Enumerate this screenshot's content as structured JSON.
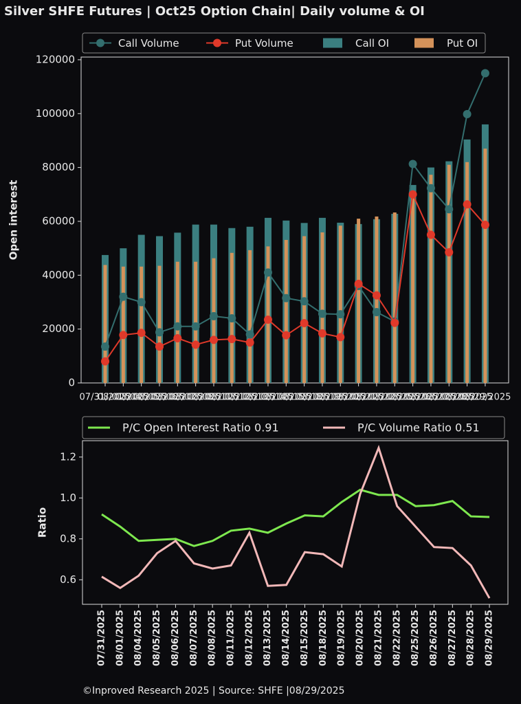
{
  "title": "Silver SHFE Futures | Oct25 Option Chain| Daily volume & OI",
  "footer": "©Inproved Research 2025 | Source: SHFE |08/29/2025",
  "chart_data": [
    {
      "type": "bar",
      "ylabel": "Open interest",
      "categories": [
        "07/31/2025",
        "08/01/2025",
        "08/04/2025",
        "08/05/2025",
        "08/06/2025",
        "08/07/2025",
        "08/08/2025",
        "08/11/2025",
        "08/12/2025",
        "08/13/2025",
        "08/14/2025",
        "08/15/2025",
        "08/18/2025",
        "08/19/2025",
        "08/20/2025",
        "08/21/2025",
        "08/22/2025",
        "08/25/2025",
        "08/26/2025",
        "08/27/2025",
        "08/28/2025",
        "08/29/2025"
      ],
      "ylim": [
        0,
        121000
      ],
      "yticks": [
        0,
        20000,
        40000,
        60000,
        80000,
        100000,
        120000
      ],
      "series": [
        {
          "name": "Call Volume",
          "type": "line",
          "color": "#336e6e",
          "values": [
            13500,
            32000,
            30000,
            18800,
            21000,
            21000,
            24800,
            24000,
            18000,
            41000,
            31500,
            30300,
            25700,
            25500,
            36000,
            26300,
            22800,
            81300,
            72300,
            64500,
            99800,
            115000
          ]
        },
        {
          "name": "Put Volume",
          "type": "line",
          "color": "#e0392a",
          "values": [
            8000,
            17800,
            18600,
            13500,
            16600,
            14200,
            16000,
            16300,
            15000,
            23500,
            17700,
            22200,
            18400,
            17000,
            36800,
            32500,
            22300,
            70000,
            55000,
            48500,
            66300,
            58700
          ]
        },
        {
          "name": "Call OI",
          "type": "bar",
          "color": "#3b7f80",
          "values": [
            47500,
            50000,
            55000,
            54500,
            55800,
            58800,
            58800,
            57500,
            58000,
            61300,
            60300,
            59400,
            61300,
            59500,
            59000,
            60800,
            62800,
            73500,
            80000,
            82300,
            90400,
            96000
          ]
        },
        {
          "name": "Put OI",
          "type": "bar",
          "color": "#d4925a",
          "values": [
            43800,
            43200,
            43200,
            43500,
            45000,
            45000,
            46300,
            48300,
            49300,
            50700,
            53100,
            54500,
            55900,
            58400,
            61000,
            61800,
            63300,
            70000,
            77300,
            81000,
            82000,
            87000
          ]
        }
      ]
    },
    {
      "type": "line",
      "ylabel": "Ratio",
      "categories": [
        "07/31/2025",
        "08/01/2025",
        "08/04/2025",
        "08/05/2025",
        "08/06/2025",
        "08/07/2025",
        "08/08/2025",
        "08/11/2025",
        "08/12/2025",
        "08/13/2025",
        "08/14/2025",
        "08/15/2025",
        "08/18/2025",
        "08/19/2025",
        "08/20/2025",
        "08/21/2025",
        "08/22/2025",
        "08/25/2025",
        "08/26/2025",
        "08/27/2025",
        "08/28/2025",
        "08/29/2025"
      ],
      "ylim": [
        0.48,
        1.28
      ],
      "yticks": [
        0.6,
        0.8,
        {
          "value": 1,
          "label": "1.0"
        },
        1.2
      ],
      "series": [
        {
          "name": "P/C Open Interest Ratio 0.91",
          "color": "#7ee84f",
          "values": [
            0.92,
            0.86,
            0.79,
            0.795,
            0.8,
            0.765,
            0.79,
            0.84,
            0.85,
            0.83,
            0.875,
            0.915,
            0.91,
            0.98,
            1.04,
            1.015,
            1.015,
            0.96,
            0.965,
            0.985,
            0.91,
            0.907
          ]
        },
        {
          "name": "P/C Volume Ratio 0.51",
          "color": "#f2b8b8",
          "values": [
            0.615,
            0.56,
            0.62,
            0.73,
            0.79,
            0.68,
            0.655,
            0.67,
            0.83,
            0.57,
            0.575,
            0.735,
            0.725,
            0.665,
            1.02,
            1.245,
            0.96,
            0.86,
            0.76,
            0.755,
            0.67,
            0.51
          ]
        }
      ]
    }
  ]
}
